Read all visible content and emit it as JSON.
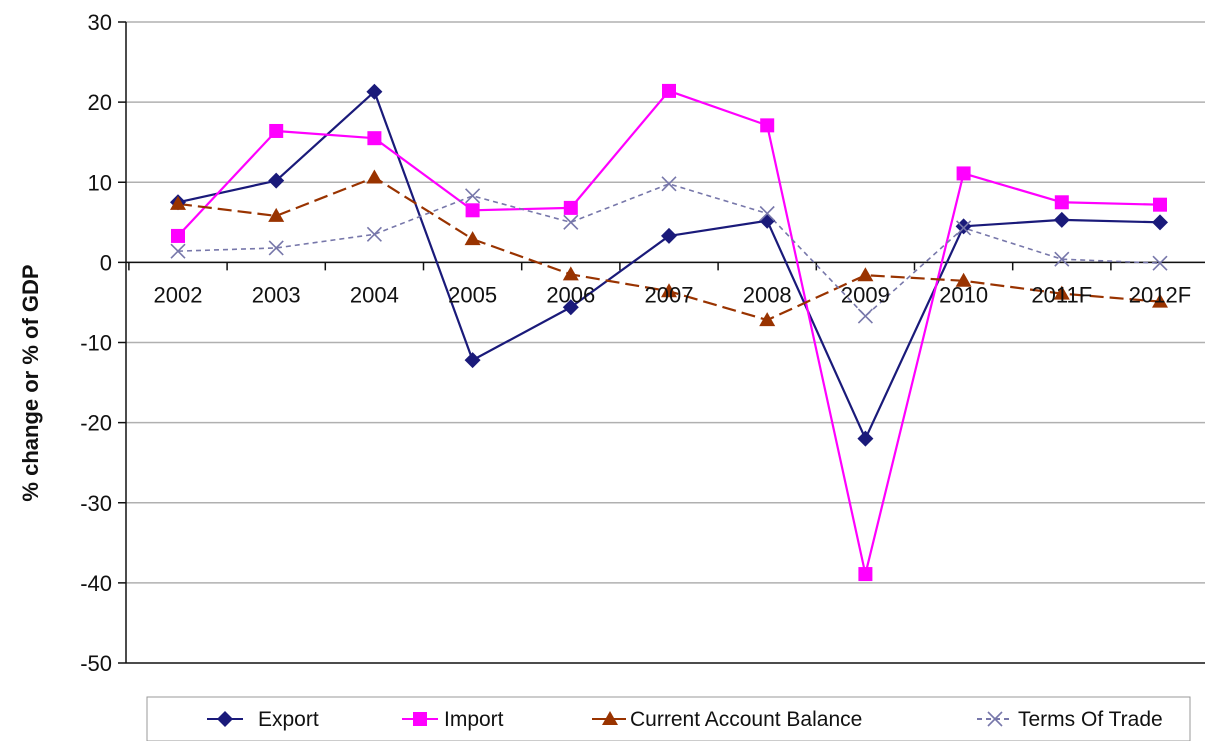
{
  "chart_data": {
    "type": "line",
    "title": "",
    "xlabel": "",
    "ylabel": "% change or % of GDP",
    "ylim": [
      -50,
      30
    ],
    "yticks": [
      30,
      20,
      10,
      0,
      -10,
      -20,
      -30,
      -40,
      -50
    ],
    "ytick_labels": [
      "30",
      "20",
      "10",
      "0",
      "-10",
      "-20",
      "-30",
      "-40",
      "-50"
    ],
    "categories": [
      "2002",
      "2003",
      "2004",
      "2005",
      "2006",
      "2007",
      "2008",
      "2009",
      "2010",
      "2011F",
      "2012F"
    ],
    "grid": "horizontal",
    "legend_position": "bottom",
    "series": [
      {
        "name": "Export",
        "color": "#1a1a7a",
        "marker": "diamond",
        "line_style": "solid",
        "values": [
          7.5,
          10.2,
          21.3,
          -12.2,
          -5.6,
          3.3,
          5.2,
          -22.0,
          4.5,
          5.3,
          5.0
        ]
      },
      {
        "name": "Import",
        "color": "#ff00ff",
        "marker": "square",
        "line_style": "solid",
        "values": [
          3.3,
          16.4,
          15.5,
          6.5,
          6.8,
          21.4,
          17.1,
          -38.9,
          11.1,
          7.5,
          7.2
        ]
      },
      {
        "name": "Current Account Balance",
        "color": "#993300",
        "marker": "triangle",
        "line_style": "dashed",
        "values": [
          7.3,
          5.8,
          10.6,
          2.9,
          -1.5,
          -3.6,
          -7.2,
          -1.6,
          -2.3,
          -3.9,
          -4.9
        ]
      },
      {
        "name": "Terms Of Trade",
        "color": "#7777aa",
        "marker": "x",
        "line_style": "dotted",
        "values": [
          1.4,
          1.8,
          3.5,
          8.3,
          5.0,
          9.8,
          6.1,
          -6.7,
          4.3,
          0.4,
          -0.1
        ]
      }
    ]
  }
}
